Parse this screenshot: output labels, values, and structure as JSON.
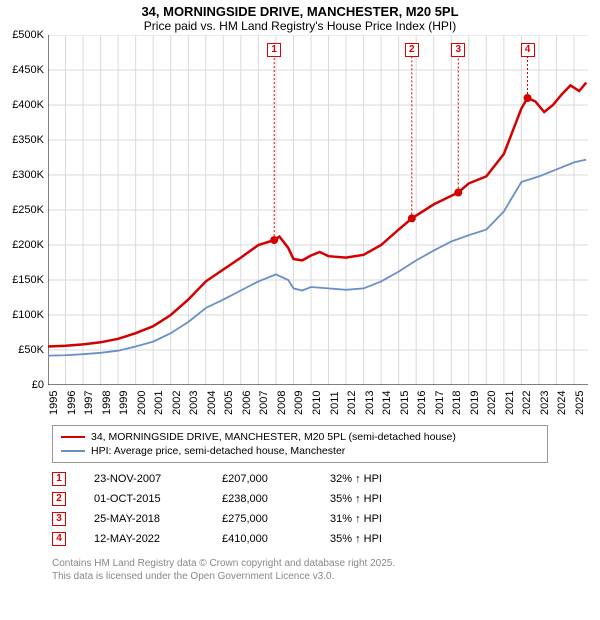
{
  "title": "34, MORNINGSIDE DRIVE, MANCHESTER, M20 5PL",
  "subtitle": "Price paid vs. HM Land Registry's House Price Index (HPI)",
  "chart": {
    "type": "line",
    "background_color": "#ffffff",
    "grid_color": "#d9d9d9",
    "ylim": [
      0,
      500000
    ],
    "ytick_step": 50000,
    "yticks_labels": [
      "£0",
      "£50K",
      "£100K",
      "£150K",
      "£200K",
      "£250K",
      "£300K",
      "£350K",
      "£400K",
      "£450K",
      "£500K"
    ],
    "xrange": [
      1995,
      2025.8
    ],
    "xticks": [
      1995,
      1996,
      1997,
      1998,
      1999,
      2000,
      2001,
      2002,
      2003,
      2004,
      2005,
      2006,
      2007,
      2008,
      2009,
      2010,
      2011,
      2012,
      2013,
      2014,
      2015,
      2016,
      2017,
      2018,
      2019,
      2020,
      2021,
      2022,
      2023,
      2024,
      2025
    ],
    "series_price": {
      "color": "#d40000",
      "line_width": 2.5,
      "marker_color": "#d40000",
      "marker_size": 4,
      "data": [
        [
          1995,
          55000
        ],
        [
          1996,
          56000
        ],
        [
          1997,
          58000
        ],
        [
          1998,
          61000
        ],
        [
          1999,
          66000
        ],
        [
          2000,
          74000
        ],
        [
          2001,
          84000
        ],
        [
          2002,
          100000
        ],
        [
          2003,
          122000
        ],
        [
          2004,
          148000
        ],
        [
          2005,
          165000
        ],
        [
          2006,
          182000
        ],
        [
          2007,
          200000
        ],
        [
          2007.9,
          207000
        ],
        [
          2008.2,
          212000
        ],
        [
          2008.7,
          196000
        ],
        [
          2009,
          180000
        ],
        [
          2009.5,
          178000
        ],
        [
          2010,
          185000
        ],
        [
          2010.5,
          190000
        ],
        [
          2011,
          184000
        ],
        [
          2012,
          182000
        ],
        [
          2013,
          186000
        ],
        [
          2014,
          200000
        ],
        [
          2015,
          222000
        ],
        [
          2015.75,
          238000
        ],
        [
          2016,
          242000
        ],
        [
          2017,
          258000
        ],
        [
          2018.4,
          275000
        ],
        [
          2019,
          288000
        ],
        [
          2020,
          298000
        ],
        [
          2021,
          330000
        ],
        [
          2022,
          395000
        ],
        [
          2022.35,
          410000
        ],
        [
          2022.8,
          405000
        ],
        [
          2023.3,
          390000
        ],
        [
          2023.8,
          400000
        ],
        [
          2024.3,
          415000
        ],
        [
          2024.8,
          428000
        ],
        [
          2025.3,
          420000
        ],
        [
          2025.7,
          432000
        ]
      ],
      "sale_markers": [
        {
          "x": 2007.9,
          "y": 207000,
          "n": "1"
        },
        {
          "x": 2015.75,
          "y": 238000,
          "n": "2"
        },
        {
          "x": 2018.4,
          "y": 275000,
          "n": "3"
        },
        {
          "x": 2022.35,
          "y": 410000,
          "n": "4"
        }
      ]
    },
    "series_hpi": {
      "color": "#6b8fc7",
      "line_width": 1.8,
      "data": [
        [
          1995,
          42000
        ],
        [
          1996,
          42500
        ],
        [
          1997,
          44000
        ],
        [
          1998,
          46000
        ],
        [
          1999,
          49000
        ],
        [
          2000,
          55000
        ],
        [
          2001,
          62000
        ],
        [
          2002,
          74000
        ],
        [
          2003,
          90000
        ],
        [
          2004,
          110000
        ],
        [
          2005,
          122000
        ],
        [
          2006,
          135000
        ],
        [
          2007,
          148000
        ],
        [
          2008,
          158000
        ],
        [
          2008.7,
          150000
        ],
        [
          2009,
          138000
        ],
        [
          2009.5,
          135000
        ],
        [
          2010,
          140000
        ],
        [
          2011,
          138000
        ],
        [
          2012,
          136000
        ],
        [
          2013,
          138000
        ],
        [
          2014,
          148000
        ],
        [
          2015,
          162000
        ],
        [
          2016,
          178000
        ],
        [
          2017,
          192000
        ],
        [
          2018,
          205000
        ],
        [
          2019,
          214000
        ],
        [
          2020,
          222000
        ],
        [
          2021,
          248000
        ],
        [
          2022,
          290000
        ],
        [
          2023,
          298000
        ],
        [
          2024,
          308000
        ],
        [
          2025,
          318000
        ],
        [
          2025.7,
          322000
        ]
      ]
    }
  },
  "legend": {
    "items": [
      {
        "color": "#d40000",
        "label": "34, MORNINGSIDE DRIVE, MANCHESTER, M20 5PL (semi-detached house)"
      },
      {
        "color": "#6b8fc7",
        "label": "HPI: Average price, semi-detached house, Manchester"
      }
    ]
  },
  "sales": [
    {
      "n": "1",
      "date": "23-NOV-2007",
      "price": "£207,000",
      "delta": "32% ↑ HPI"
    },
    {
      "n": "2",
      "date": "01-OCT-2015",
      "price": "£238,000",
      "delta": "35% ↑ HPI"
    },
    {
      "n": "3",
      "date": "25-MAY-2018",
      "price": "£275,000",
      "delta": "31% ↑ HPI"
    },
    {
      "n": "4",
      "date": "12-MAY-2022",
      "price": "£410,000",
      "delta": "35% ↑ HPI"
    }
  ],
  "footnote_l1": "Contains HM Land Registry data © Crown copyright and database right 2025.",
  "footnote_l2": "This data is licensed under the Open Government Licence v3.0."
}
